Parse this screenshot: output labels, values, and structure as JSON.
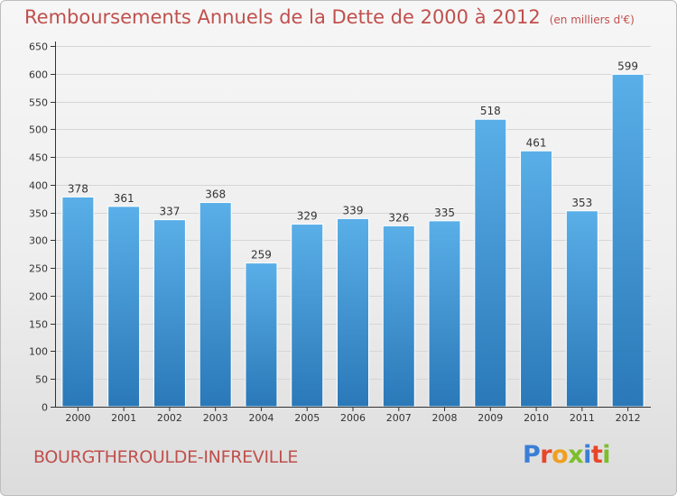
{
  "title": "Remboursements Annuels de la Dette de 2000 à 2012",
  "subtitle": "(en milliers d'€)",
  "commune": "BOURGTHEROULDE-INFREVILLE",
  "logo": {
    "text": "Proxiti",
    "colors": [
      "#3a7fd5",
      "#e8462a",
      "#f0a020",
      "#7cbf2a",
      "#3a7fd5",
      "#e8462a",
      "#7cbf2a"
    ]
  },
  "colors": {
    "bar_top": "#5aafe8",
    "bar_bottom": "#2a78b8",
    "text": "#c0504d",
    "axis": "#333333"
  },
  "chart_data": {
    "type": "bar",
    "categories": [
      "2000",
      "2001",
      "2002",
      "2003",
      "2004",
      "2005",
      "2006",
      "2007",
      "2008",
      "2009",
      "2010",
      "2011",
      "2012"
    ],
    "values": [
      378,
      361,
      337,
      368,
      259,
      329,
      339,
      326,
      335,
      518,
      461,
      353,
      599
    ],
    "yticks": [
      0,
      50,
      100,
      150,
      200,
      250,
      300,
      350,
      400,
      450,
      500,
      550,
      600,
      650
    ],
    "ylim": [
      0,
      650
    ],
    "grid": true,
    "legend": "none"
  }
}
